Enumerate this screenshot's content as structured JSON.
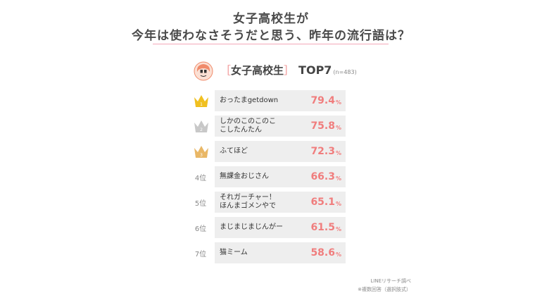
{
  "header": {
    "title_line1": "女子高校生が",
    "title_line2": "今年は使わなさそうだと思う、昨年の流行語は？"
  },
  "subheader": {
    "bracket_left": "［",
    "group": "女子高校生",
    "bracket_right": "］",
    "top_label": "TOP7",
    "sample": "(n=483)"
  },
  "colors": {
    "accent": "#f07d7d",
    "gold": "#f0c020",
    "silver": "#c8c8c8",
    "bronze": "#e9b766",
    "row_bg": "#eeeeee",
    "title_rule": "#f3a8b8"
  },
  "chart_data": {
    "type": "table",
    "title": "今年は使わなさそうだと思う、昨年の流行語は？",
    "unit": "%",
    "rows": [
      {
        "rank": "1",
        "rank_icon": "gold-crown-icon",
        "label_lines": [
          "おったまgetdown"
        ],
        "value": 79.4,
        "value_text": "79.4"
      },
      {
        "rank": "2",
        "rank_icon": "silver-crown-icon",
        "label_lines": [
          "しかのこのこのこ",
          "こしたんたん"
        ],
        "value": 75.8,
        "value_text": "75.8"
      },
      {
        "rank": "3",
        "rank_icon": "bronze-crown-icon",
        "label_lines": [
          "ふてほど"
        ],
        "value": 72.3,
        "value_text": "72.3"
      },
      {
        "rank": "4位",
        "label_lines": [
          "無課金おじさん"
        ],
        "value": 66.3,
        "value_text": "66.3"
      },
      {
        "rank": "5位",
        "label_lines": [
          "それガーチャー！",
          "ほんまゴメンやで"
        ],
        "value": 65.1,
        "value_text": "65.1"
      },
      {
        "rank": "6位",
        "label_lines": [
          "まじまじまじんがー"
        ],
        "value": 61.5,
        "value_text": "61.5"
      },
      {
        "rank": "7位",
        "label_lines": [
          "猫ミーム"
        ],
        "value": 58.6,
        "value_text": "58.6"
      }
    ]
  },
  "footer": {
    "source": "LINEリサーチ調べ",
    "note": "※複数回答（選択肢式）"
  }
}
